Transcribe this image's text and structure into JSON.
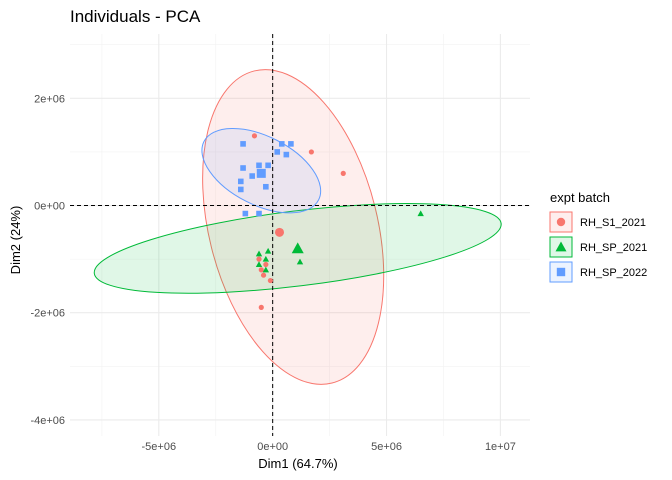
{
  "chart_data": {
    "type": "scatter",
    "title": "Individuals - PCA",
    "xlabel": "Dim1 (64.7%)",
    "ylabel": "Dim2 (24%)",
    "xlim": [
      -8900000,
      11300000
    ],
    "ylim": [
      -4300000,
      3200000
    ],
    "x_ticks": [
      {
        "value": -5000000,
        "label": "-5e+06"
      },
      {
        "value": 0,
        "label": "0e+00"
      },
      {
        "value": 5000000,
        "label": "5e+06"
      },
      {
        "value": 10000000,
        "label": "1e+07"
      }
    ],
    "y_ticks": [
      {
        "value": 2000000,
        "label": "2e+06"
      },
      {
        "value": 0,
        "label": "0e+00"
      },
      {
        "value": -2000000,
        "label": "-2e+06"
      },
      {
        "value": -4000000,
        "label": "-4e+06"
      }
    ],
    "grid": true,
    "legend_title": "expt batch",
    "legend_position": "right",
    "series": [
      {
        "name": "RH_S1_2021",
        "color": "#F8766D",
        "shape": "circle",
        "points": [
          [
            -800000,
            1300000
          ],
          [
            1700000,
            1000000
          ],
          [
            3100000,
            600000
          ],
          [
            -600000,
            -1000000
          ],
          [
            -300000,
            -1100000
          ],
          [
            -500000,
            -1200000
          ],
          [
            -400000,
            -1300000
          ],
          [
            -100000,
            -1400000
          ],
          [
            -500000,
            -1900000
          ]
        ],
        "centroid": [
          300000,
          -500000
        ],
        "ellipse": {
          "cx": 900000,
          "cy": -400000,
          "rx": 3700000,
          "ry": 3000000,
          "angle_deg": 14
        }
      },
      {
        "name": "RH_SP_2021",
        "color": "#00BA38",
        "shape": "triangle",
        "points": [
          [
            6500000,
            -150000
          ],
          [
            -600000,
            -900000
          ],
          [
            -200000,
            -850000
          ],
          [
            -300000,
            -1000000
          ],
          [
            -600000,
            -1100000
          ],
          [
            -300000,
            -1200000
          ],
          [
            1200000,
            -1050000
          ]
        ],
        "centroid": [
          1100000,
          -800000
        ],
        "ellipse": {
          "cx": 1100000,
          "cy": -800000,
          "rx": 9000000,
          "ry": 700000,
          "angle_deg": 7
        }
      },
      {
        "name": "RH_SP_2022",
        "color": "#619CFF",
        "shape": "square",
        "points": [
          [
            -1300000,
            1150000
          ],
          [
            400000,
            1150000
          ],
          [
            800000,
            1150000
          ],
          [
            200000,
            1000000
          ],
          [
            600000,
            950000
          ],
          [
            -200000,
            750000
          ],
          [
            -1300000,
            700000
          ],
          [
            -600000,
            750000
          ],
          [
            -900000,
            550000
          ],
          [
            -1400000,
            450000
          ],
          [
            -300000,
            350000
          ],
          [
            -1400000,
            300000
          ],
          [
            -1200000,
            -150000
          ],
          [
            -600000,
            -150000
          ]
        ],
        "centroid": [
          -500000,
          600000
        ],
        "ellipse": {
          "cx": -500000,
          "cy": 650000,
          "rx": 1500000,
          "ry": 1200000,
          "angle_deg": 63
        }
      }
    ]
  }
}
